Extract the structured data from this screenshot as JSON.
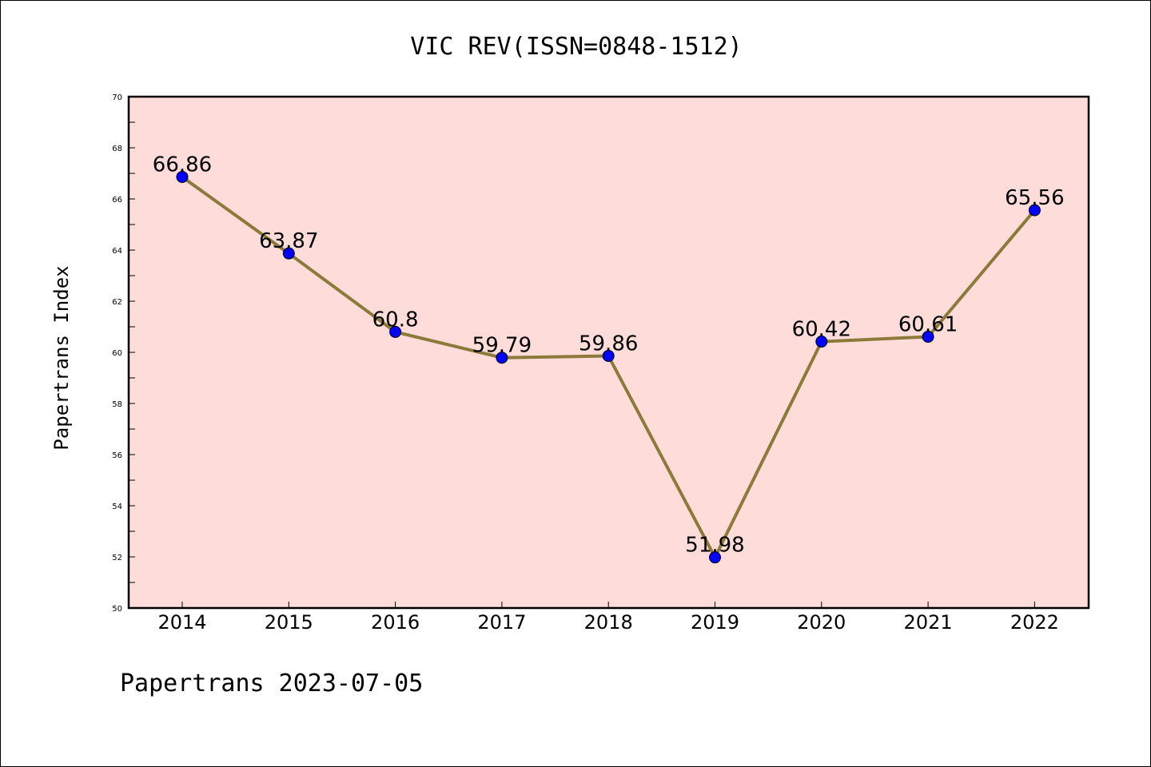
{
  "chart_data": {
    "type": "line",
    "title": "VIC REV(ISSN=0848-1512)",
    "xlabel": "",
    "ylabel": "Papertrans Index",
    "footer": "Papertrans 2023-07-05",
    "categories": [
      "2014",
      "2015",
      "2016",
      "2017",
      "2018",
      "2019",
      "2020",
      "2021",
      "2022"
    ],
    "series": [
      {
        "values": [
          66.86,
          63.87,
          60.8,
          59.79,
          59.86,
          51.98,
          60.42,
          60.61,
          65.56
        ],
        "labels": [
          "66.86",
          "63.87",
          "60.8",
          "59.79",
          "59.86",
          "51.98",
          "60.42",
          "60.61",
          "65.56"
        ]
      }
    ],
    "ylim": [
      50,
      70
    ],
    "yticks": [
      "50",
      "52",
      "54",
      "56",
      "58",
      "60",
      "62",
      "64",
      "66",
      "68",
      "70"
    ],
    "grid": false,
    "colors": {
      "plot_background": "#FDDCDA",
      "line": "#8B7A3A",
      "marker": "#0000FF"
    }
  }
}
